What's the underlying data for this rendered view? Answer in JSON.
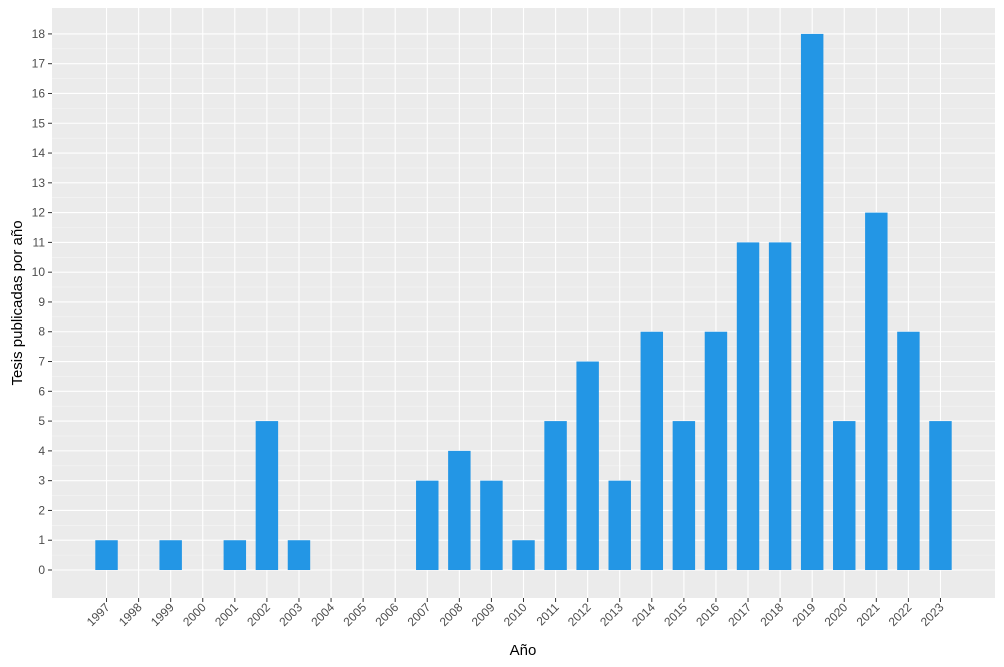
{
  "chart_data": {
    "type": "bar",
    "x_label": "Año",
    "y_label": "Tesis publicadas por año",
    "categories": [
      "1997",
      "1998",
      "1999",
      "2000",
      "2001",
      "2002",
      "2003",
      "2004",
      "2005",
      "2006",
      "2007",
      "2008",
      "2009",
      "2010",
      "2011",
      "2012",
      "2013",
      "2014",
      "2015",
      "2016",
      "2017",
      "2018",
      "2019",
      "2020",
      "2021",
      "2022",
      "2023"
    ],
    "values": [
      1,
      0,
      1,
      0,
      1,
      5,
      1,
      0,
      0,
      0,
      3,
      4,
      3,
      1,
      5,
      7,
      3,
      8,
      5,
      8,
      11,
      11,
      18,
      5,
      12,
      8,
      5
    ],
    "color": "#2396e5",
    "ylim": [
      -0.94,
      18.87
    ],
    "yticks": [
      0,
      1,
      2,
      3,
      4,
      5,
      6,
      7,
      8,
      9,
      10,
      11,
      12,
      13,
      14,
      15,
      16,
      17,
      18
    ],
    "grid": true
  }
}
